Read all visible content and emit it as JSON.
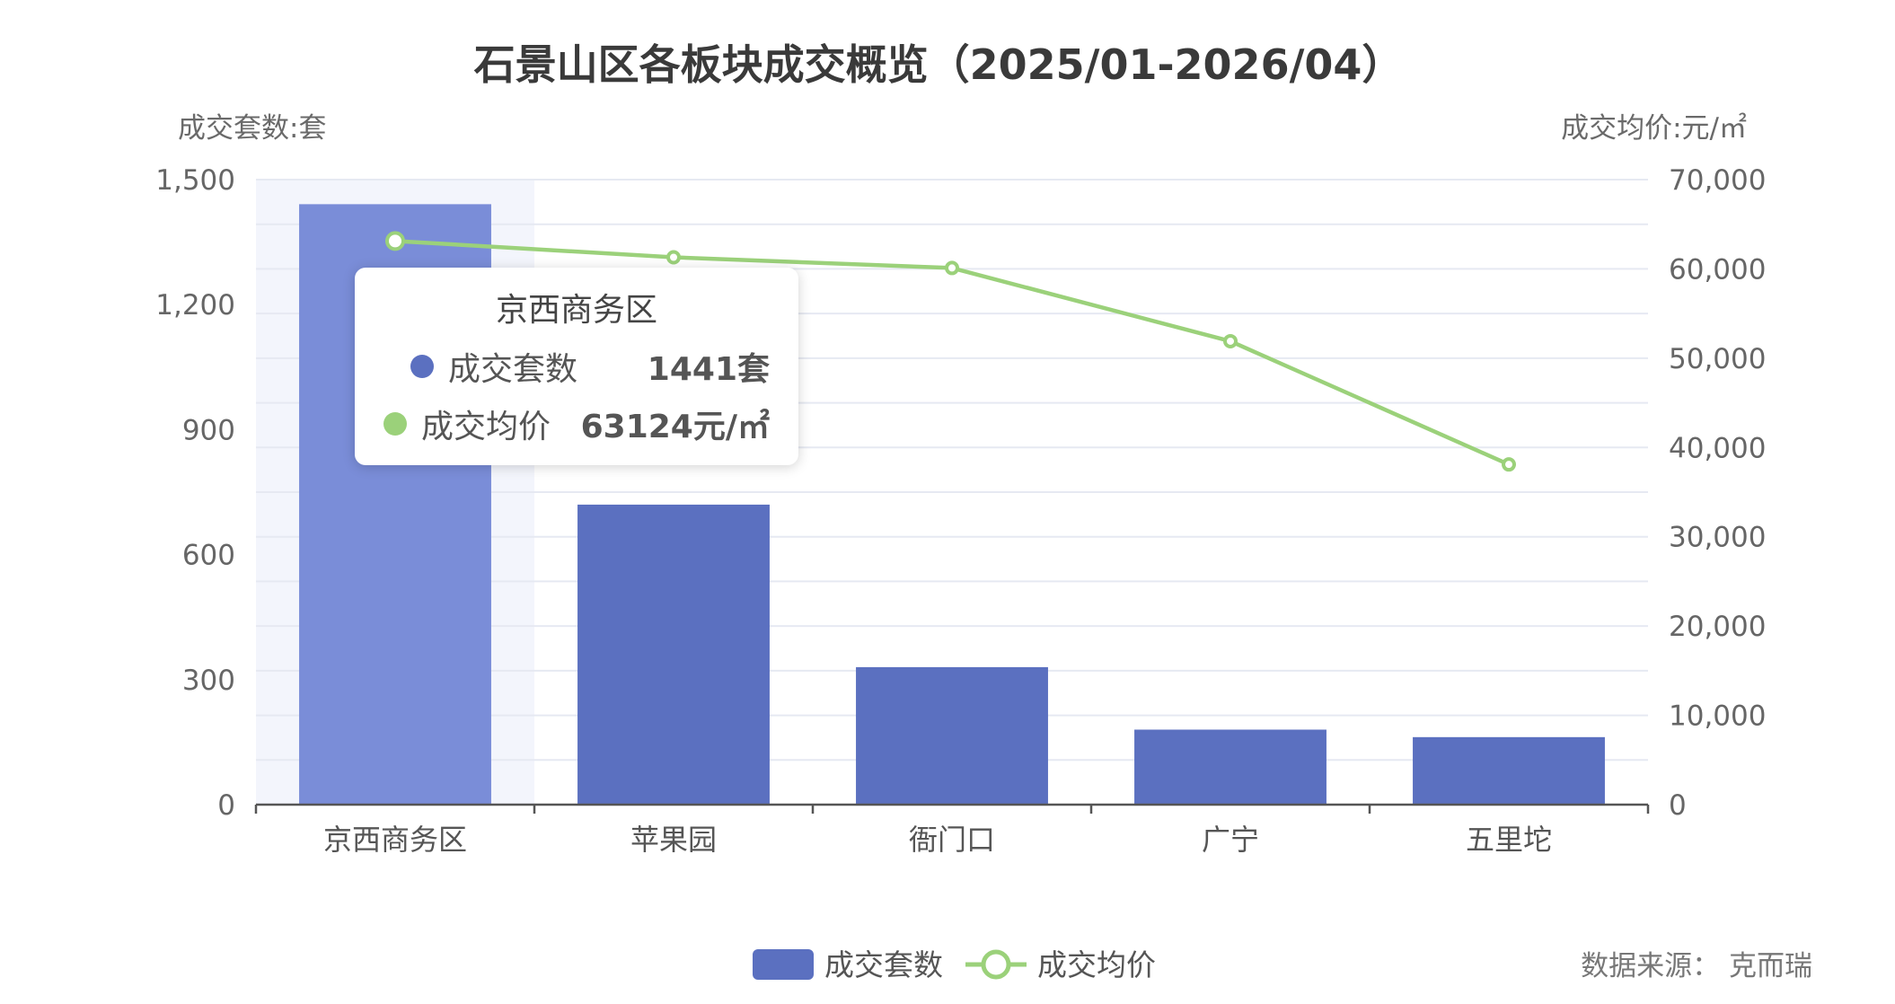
{
  "chart_data": {
    "type": "bar",
    "title": "石景山区各板块成交概览（2025/01-2026/04）",
    "categories": [
      "京西商务区",
      "苹果园",
      "衙门口",
      "广宁",
      "五里坨"
    ],
    "left_axis": {
      "label": "成交套数:套",
      "min": 0,
      "max": 1500,
      "ticks": [
        "0",
        "300",
        "600",
        "900",
        "1,200",
        "1,500"
      ]
    },
    "right_axis": {
      "label": "成交均价:元/㎡",
      "min": 0,
      "max": 70000,
      "ticks": [
        "0",
        "10,000",
        "20,000",
        "30,000",
        "40,000",
        "50,000",
        "60,000",
        "70,000"
      ]
    },
    "series": [
      {
        "name": "成交套数",
        "type": "bar",
        "axis": "left",
        "color": "#5b70c0",
        "highlight_color": "#7a8dd8",
        "values": [
          1441,
          720,
          330,
          180,
          162
        ]
      },
      {
        "name": "成交均价",
        "type": "line",
        "axis": "right",
        "color": "#9bd17a",
        "values": [
          63124,
          61300,
          60100,
          51900,
          38100
        ]
      }
    ],
    "grid": true,
    "legend_position": "bottom-center",
    "highlighted_category": 0,
    "source": "数据来源：  克而瑞"
  },
  "tooltip": {
    "title": "京西商务区",
    "rows": [
      {
        "name": "成交套数",
        "value": "1441套",
        "color": "#5b70c0"
      },
      {
        "name": "成交均价",
        "value": "63124元/㎡",
        "color": "#9bd17a"
      }
    ]
  }
}
